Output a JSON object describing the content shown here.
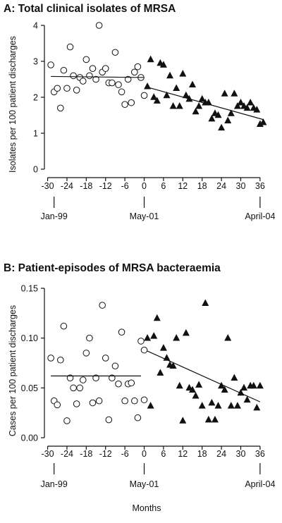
{
  "chart_data": [
    {
      "type": "scatter",
      "title": "A: Total clinical isolates of MRSA",
      "xlabel": "",
      "ylabel": "Isolates per 100 patient discharges",
      "xlim": [
        -30,
        37
      ],
      "ylim": [
        0,
        4
      ],
      "xticks": [
        -30,
        -24,
        -18,
        -12,
        -6,
        0,
        6,
        12,
        18,
        24,
        30,
        36
      ],
      "yticks": [
        0,
        1,
        2,
        3,
        4
      ],
      "date_labels": [
        {
          "x": -28,
          "label": "Jan-99"
        },
        {
          "x": 0,
          "label": "May-01"
        },
        {
          "x": 36,
          "label": "April-04"
        }
      ],
      "series": [
        {
          "marker": "open-circle",
          "points": [
            [
              -29,
              2.9
            ],
            [
              -28,
              2.15
            ],
            [
              -27,
              2.25
            ],
            [
              -26,
              1.7
            ],
            [
              -25,
              2.75
            ],
            [
              -24,
              2.25
            ],
            [
              -23,
              3.4
            ],
            [
              -22,
              2.6
            ],
            [
              -21,
              2.2
            ],
            [
              -20,
              2.55
            ],
            [
              -19,
              2.45
            ],
            [
              -18,
              3.05
            ],
            [
              -17,
              2.6
            ],
            [
              -16,
              2.8
            ],
            [
              -15,
              2.5
            ],
            [
              -14,
              4.0
            ],
            [
              -13,
              2.7
            ],
            [
              -12,
              2.8
            ],
            [
              -11,
              2.4
            ],
            [
              -10,
              2.4
            ],
            [
              -9,
              3.25
            ],
            [
              -8,
              2.35
            ],
            [
              -7,
              2.15
            ],
            [
              -6,
              1.8
            ],
            [
              -5,
              2.5
            ],
            [
              -4,
              1.85
            ],
            [
              -3,
              2.7
            ],
            [
              -2,
              2.85
            ],
            [
              -1,
              2.55
            ],
            [
              0,
              2.05
            ]
          ],
          "trend": [
            [
              -29,
              2.58
            ],
            [
              0,
              2.55
            ]
          ]
        },
        {
          "marker": "filled-triangle",
          "points": [
            [
              1,
              2.3
            ],
            [
              2,
              3.05
            ],
            [
              3,
              2.0
            ],
            [
              4,
              1.9
            ],
            [
              5,
              2.95
            ],
            [
              6,
              2.9
            ],
            [
              7,
              2.05
            ],
            [
              8,
              2.6
            ],
            [
              9,
              1.75
            ],
            [
              10,
              2.25
            ],
            [
              11,
              1.75
            ],
            [
              12,
              2.65
            ],
            [
              13,
              2.05
            ],
            [
              14,
              1.95
            ],
            [
              15,
              2.35
            ],
            [
              16,
              1.6
            ],
            [
              17,
              1.75
            ],
            [
              18,
              1.95
            ],
            [
              19,
              1.85
            ],
            [
              20,
              1.85
            ],
            [
              21,
              1.4
            ],
            [
              22,
              1.55
            ],
            [
              23,
              1.5
            ],
            [
              24,
              1.15
            ],
            [
              25,
              2.1
            ],
            [
              26,
              1.35
            ],
            [
              27,
              1.55
            ],
            [
              28,
              2.1
            ],
            [
              29,
              1.75
            ],
            [
              30,
              1.85
            ],
            [
              31,
              1.75
            ],
            [
              32,
              1.7
            ],
            [
              33,
              1.85
            ],
            [
              34,
              1.7
            ],
            [
              35,
              1.65
            ],
            [
              36,
              1.25
            ],
            [
              37,
              1.3
            ]
          ],
          "trend": [
            [
              1,
              2.28
            ],
            [
              37,
              1.38
            ]
          ]
        }
      ]
    },
    {
      "type": "scatter",
      "title": "B: Patient-episodes of MRSA bacteraemia",
      "xlabel": "Months",
      "ylabel": "Cases per 100 patient discharges",
      "xlim": [
        -30,
        37
      ],
      "ylim": [
        0,
        0.15
      ],
      "xticks": [
        -30,
        -24,
        -18,
        -12,
        -6,
        0,
        6,
        12,
        18,
        24,
        30,
        36
      ],
      "yticks": [
        0.0,
        0.05,
        0.1,
        0.15
      ],
      "ytick_labels": [
        "0.00",
        "0.05",
        "0.10",
        "0.15"
      ],
      "date_labels": [
        {
          "x": -28,
          "label": "Jan-99"
        },
        {
          "x": 0,
          "label": "May-01"
        },
        {
          "x": 36,
          "label": "April-04"
        }
      ],
      "series": [
        {
          "marker": "open-circle",
          "points": [
            [
              -29,
              0.08
            ],
            [
              -28,
              0.037
            ],
            [
              -27,
              0.033
            ],
            [
              -26,
              0.078
            ],
            [
              -25,
              0.112
            ],
            [
              -24,
              0.017
            ],
            [
              -23,
              0.06
            ],
            [
              -22,
              0.05
            ],
            [
              -21,
              0.034
            ],
            [
              -20,
              0.05
            ],
            [
              -19,
              0.058
            ],
            [
              -18,
              0.085
            ],
            [
              -17,
              0.1
            ],
            [
              -16,
              0.035
            ],
            [
              -15,
              0.06
            ],
            [
              -14,
              0.037
            ],
            [
              -13,
              0.133
            ],
            [
              -12,
              0.08
            ],
            [
              -11,
              0.018
            ],
            [
              -10,
              0.06
            ],
            [
              -9,
              0.072
            ],
            [
              -8,
              0.054
            ],
            [
              -7,
              0.106
            ],
            [
              -6,
              0.037
            ],
            [
              -5,
              0.054
            ],
            [
              -4,
              0.055
            ],
            [
              -3,
              0.037
            ],
            [
              -2,
              0.02
            ],
            [
              -1,
              0.097
            ],
            [
              0,
              0.088
            ],
            [
              0,
              0.038
            ]
          ],
          "trend": [
            [
              -29,
              0.062
            ],
            [
              -1,
              0.062
            ]
          ]
        },
        {
          "marker": "filled-triangle",
          "points": [
            [
              1,
              0.1
            ],
            [
              2,
              0.032
            ],
            [
              3,
              0.102
            ],
            [
              4,
              0.12
            ],
            [
              5,
              0.065
            ],
            [
              6,
              0.09
            ],
            [
              7,
              0.08
            ],
            [
              8,
              0.073
            ],
            [
              9,
              0.072
            ],
            [
              10,
              0.1
            ],
            [
              11,
              0.052
            ],
            [
              12,
              0.017
            ],
            [
              13,
              0.105
            ],
            [
              14,
              0.05
            ],
            [
              15,
              0.048
            ],
            [
              16,
              0.042
            ],
            [
              17,
              0.053
            ],
            [
              18,
              0.032
            ],
            [
              19,
              0.135
            ],
            [
              20,
              0.018
            ],
            [
              21,
              0.035
            ],
            [
              22,
              0.018
            ],
            [
              23,
              0.032
            ],
            [
              24,
              0.052
            ],
            [
              25,
              0.048
            ],
            [
              26,
              0.1
            ],
            [
              27,
              0.032
            ],
            [
              28,
              0.06
            ],
            [
              29,
              0.032
            ],
            [
              30,
              0.045
            ],
            [
              31,
              0.05
            ],
            [
              32,
              0.038
            ],
            [
              33,
              0.052
            ],
            [
              34,
              0.052
            ],
            [
              35,
              0.03
            ],
            [
              36,
              0.052
            ]
          ],
          "trend": [
            [
              1,
              0.087
            ],
            [
              36,
              0.036
            ]
          ]
        }
      ]
    }
  ]
}
